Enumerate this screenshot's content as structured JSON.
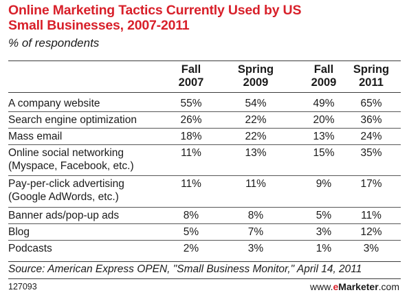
{
  "header": {
    "title_line1": "Online Marketing Tactics Currently Used by US",
    "title_line2": "Small Businesses, 2007-2011",
    "subtitle": "% of respondents"
  },
  "chart_data": {
    "type": "table",
    "title": "Online Marketing Tactics Currently Used by US Small Businesses, 2007-2011",
    "subtitle": "% of respondents",
    "columns": [
      {
        "line1": "Fall",
        "line2": "2007"
      },
      {
        "line1": "Spring",
        "line2": "2009"
      },
      {
        "line1": "Fall",
        "line2": "2009"
      },
      {
        "line1": "Spring",
        "line2": "2011"
      }
    ],
    "rows": [
      {
        "label": [
          "A company website"
        ],
        "values": [
          "55%",
          "54%",
          "49%",
          "65%"
        ]
      },
      {
        "label": [
          "Search engine optimization"
        ],
        "values": [
          "26%",
          "22%",
          "20%",
          "36%"
        ]
      },
      {
        "label": [
          "Mass email"
        ],
        "values": [
          "18%",
          "22%",
          "13%",
          "24%"
        ]
      },
      {
        "label": [
          "Online social networking",
          "(Myspace, Facebook, etc.)"
        ],
        "values": [
          "11%",
          "13%",
          "15%",
          "35%"
        ]
      },
      {
        "label": [
          "Pay-per-click advertising",
          "(Google AdWords, etc.)"
        ],
        "values": [
          "11%",
          "11%",
          "9%",
          "17%"
        ]
      },
      {
        "label": [
          "Banner ads/pop-up ads"
        ],
        "values": [
          "8%",
          "8%",
          "5%",
          "11%"
        ]
      },
      {
        "label": [
          "Blog"
        ],
        "values": [
          "5%",
          "7%",
          "3%",
          "12%"
        ]
      },
      {
        "label": [
          "Podcasts"
        ],
        "values": [
          "2%",
          "3%",
          "1%",
          "3%"
        ]
      }
    ]
  },
  "footer": {
    "source": "Source: American Express OPEN, \"Small Business Monitor,\" April 14, 2011",
    "chart_id": "127093",
    "brand_prefix": "www.",
    "brand_e": "e",
    "brand_name": "Marketer",
    "brand_suffix": ".com"
  },
  "colors": {
    "title": "#d8202a",
    "text": "#1a1a1a",
    "rule": "#3a3a3a"
  }
}
